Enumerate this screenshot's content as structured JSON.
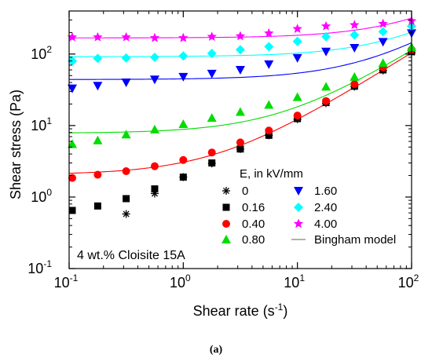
{
  "caption": "(a)",
  "chart_data": {
    "type": "scatter",
    "xlabel": "Shear rate (s",
    "xlabel_sup": "-1",
    "xlabel_tail": ")",
    "ylabel": "Shear stress (Pa)",
    "x_scale": "log",
    "y_scale": "log",
    "xlim": [
      0.1,
      100
    ],
    "ylim": [
      0.1,
      400
    ],
    "x_ticks": [
      {
        "value": 0.1,
        "base": "10",
        "exp": "-1"
      },
      {
        "value": 1,
        "base": "10",
        "exp": "0"
      },
      {
        "value": 10,
        "base": "10",
        "exp": "1"
      },
      {
        "value": 100,
        "base": "10",
        "exp": "2"
      }
    ],
    "y_ticks": [
      {
        "value": 0.1,
        "base": "10",
        "exp": "-1"
      },
      {
        "value": 1,
        "base": "10",
        "exp": "0"
      },
      {
        "value": 10,
        "base": "10",
        "exp": "1"
      },
      {
        "value": 100,
        "base": "10",
        "exp": "2"
      }
    ],
    "grid": false,
    "legend_title": "E, in kV/mm",
    "legend_position": "bottom-right",
    "annotation": "4 wt.% Cloisite 15A",
    "model_label": "Bingham model",
    "model_color": "#808080",
    "x": [
      0.1,
      0.178,
      0.316,
      0.562,
      1.0,
      1.78,
      3.16,
      5.62,
      10.0,
      17.8,
      31.6,
      56.2,
      100.0
    ],
    "series": [
      {
        "name": "0",
        "marker": "asterisk",
        "color": "#000000",
        "y": [
          null,
          null,
          0.58,
          1.12,
          1.9,
          2.95,
          4.7,
          7.3,
          12.3,
          20.5,
          35.0,
          59.0,
          105.0
        ],
        "fit": null
      },
      {
        "name": "0.16",
        "marker": "square",
        "color": "#000000",
        "y": [
          0.65,
          0.75,
          0.95,
          1.3,
          1.9,
          3.0,
          4.7,
          7.3,
          12.5,
          21.0,
          35.5,
          60.0,
          108.0
        ],
        "fit": null
      },
      {
        "name": "0.40",
        "marker": "circle",
        "color": "#ff0000",
        "y": [
          1.85,
          2.05,
          2.3,
          2.7,
          3.3,
          4.2,
          5.8,
          8.5,
          13.8,
          22.0,
          38.0,
          65.0,
          115.0
        ],
        "fit": {
          "tau0": 2.05,
          "eta": 1.02,
          "color": "#ff0000"
        }
      },
      {
        "name": "0.80",
        "marker": "triangle-up",
        "color": "#00dd00",
        "y": [
          5.5,
          6.2,
          7.5,
          8.8,
          10.5,
          12.8,
          15.5,
          19.5,
          25.0,
          35.0,
          48.0,
          75.0,
          125.0
        ],
        "fit": {
          "tau0": 7.8,
          "eta": 1.05,
          "color": "#00dd00"
        }
      },
      {
        "name": "1.60",
        "marker": "triangle-down",
        "color": "#0000ff",
        "y": [
          33.0,
          36.0,
          40.0,
          44.0,
          48.0,
          53.0,
          60.0,
          72.0,
          88.0,
          108.0,
          122.0,
          148.0,
          195.0
        ],
        "fit": {
          "tau0": 44.0,
          "eta": 1.0,
          "color": "#0000ff"
        }
      },
      {
        "name": "2.40",
        "marker": "diamond",
        "color": "#00ffff",
        "y": [
          80.0,
          87.0,
          88.0,
          90.0,
          94.0,
          102.0,
          115.0,
          127.0,
          150.0,
          175.0,
          185.0,
          205.0,
          245.0
        ],
        "fit": {
          "tau0": 92.0,
          "eta": 1.1,
          "color": "#00ffff"
        }
      },
      {
        "name": "4.00",
        "marker": "star",
        "color": "#ff00ff",
        "y": [
          172.0,
          172.0,
          172.0,
          168.0,
          168.0,
          175.0,
          178.0,
          195.0,
          225.0,
          245.0,
          255.0,
          265.0,
          290.0
        ],
        "fit": {
          "tau0": 168.0,
          "eta": 1.5,
          "color": "#ff00ff"
        }
      }
    ]
  }
}
